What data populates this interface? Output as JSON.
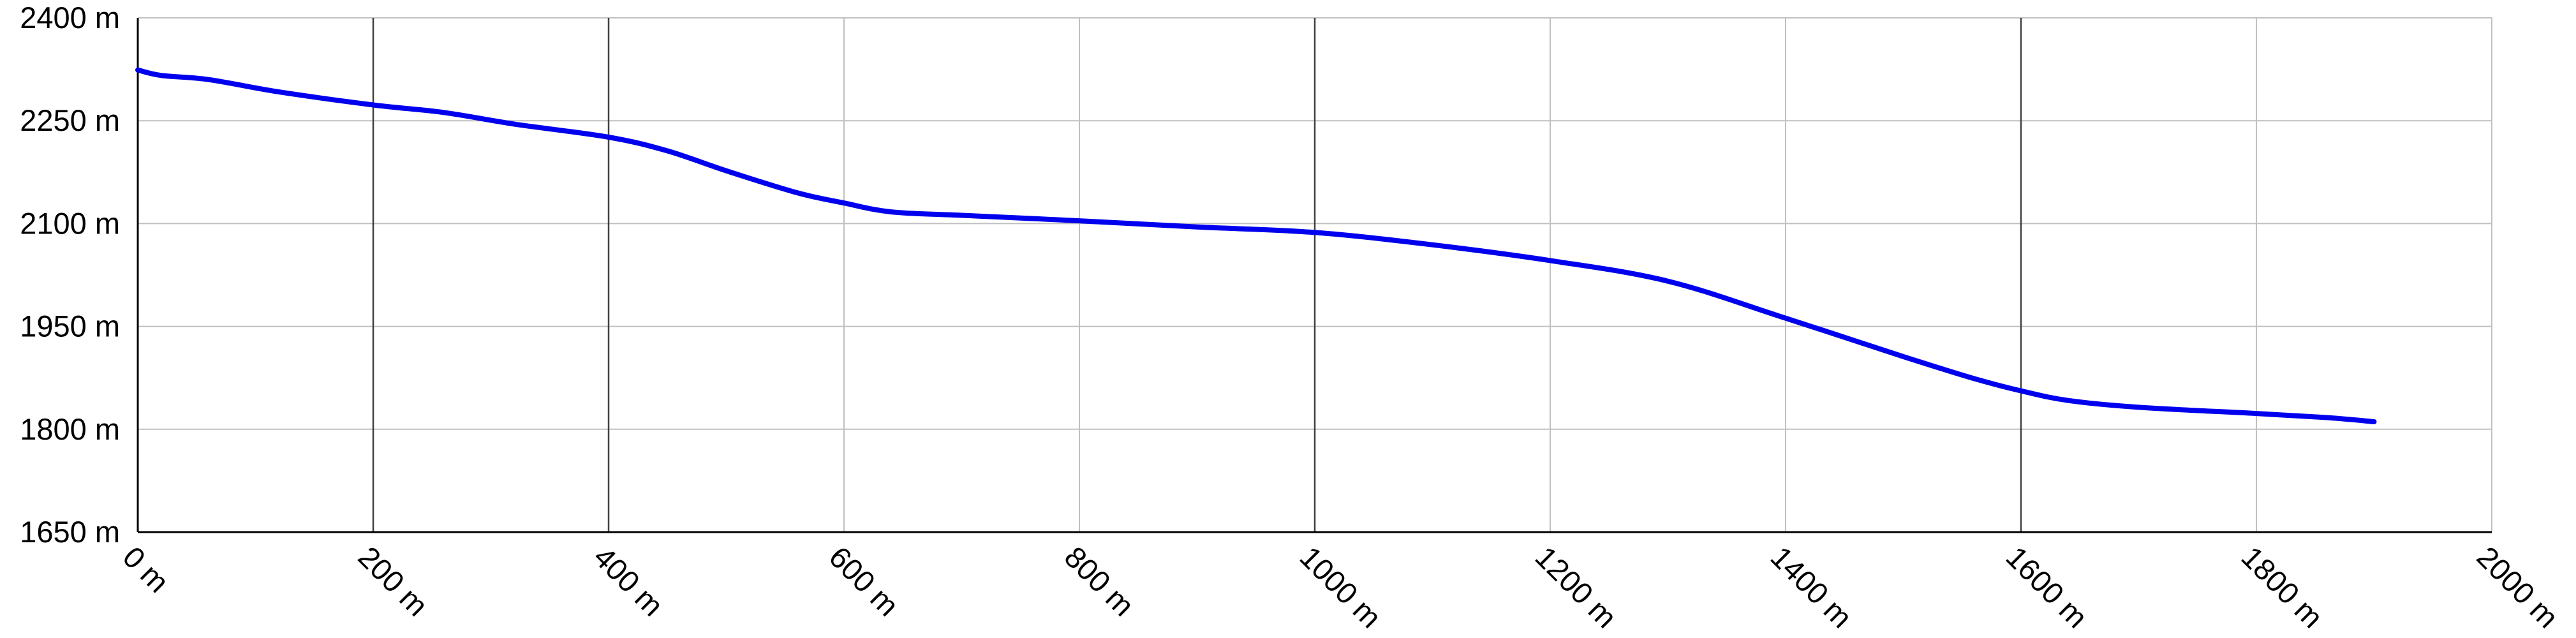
{
  "chart_data": {
    "type": "line",
    "title": "",
    "xlabel": "",
    "ylabel": "",
    "x_unit": "m",
    "y_unit": "m",
    "xlim": [
      0,
      2000
    ],
    "ylim": [
      1650,
      2400
    ],
    "x_ticks": [
      0,
      200,
      400,
      600,
      800,
      1000,
      1200,
      1400,
      1600,
      1800,
      2000
    ],
    "y_ticks": [
      1650,
      1800,
      1950,
      2100,
      2250,
      2400
    ],
    "x_tick_labels": [
      "0 m",
      "200 m",
      "400 m",
      "600 m",
      "800 m",
      "1000 m",
      "1200 m",
      "1400 m",
      "1600 m",
      "1800 m",
      "2000 m"
    ],
    "y_tick_labels": [
      "1650 m",
      "1800 m",
      "1950 m",
      "2100 m",
      "2250 m",
      "2400 m"
    ],
    "grid": true,
    "legend": "none",
    "series": [
      {
        "color": "#0000ee",
        "x": [
          0,
          20,
          60,
          120,
          200,
          260,
          320,
          400,
          450,
          500,
          560,
          600,
          640,
          700,
          800,
          900,
          1000,
          1100,
          1200,
          1300,
          1400,
          1500,
          1560,
          1600,
          1640,
          1700,
          1800,
          1860,
          1900
        ],
        "y": [
          2324,
          2316,
          2310,
          2292,
          2273,
          2262,
          2245,
          2226,
          2206,
          2177,
          2145,
          2130,
          2117,
          2112,
          2104,
          2095,
          2087,
          2069,
          2046,
          2016,
          1962,
          1906,
          1874,
          1856,
          1842,
          1832,
          1823,
          1817,
          1811
        ]
      }
    ]
  },
  "colors": {
    "line": "#0000ee",
    "grid": "#c0c0c0",
    "grid_major": "#404040",
    "axis": "#000000",
    "background": "#ffffff"
  }
}
